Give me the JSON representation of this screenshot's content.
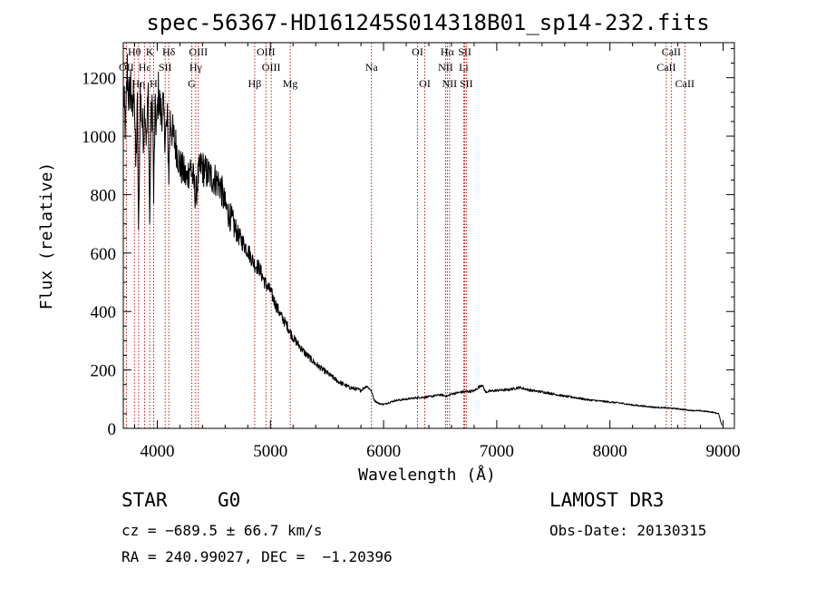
{
  "chart_data": {
    "type": "line",
    "title": "spec-56367-HD161245S014318B01_sp14-232.fits",
    "xlabel": "Wavelength (Å)",
    "ylabel": "Flux (relative)",
    "xlim": [
      3700,
      9100
    ],
    "ylim": [
      0,
      1320
    ],
    "x_ticks": [
      4000,
      5000,
      6000,
      7000,
      8000,
      9000
    ],
    "y_ticks": [
      0,
      200,
      400,
      600,
      800,
      1000,
      1200
    ],
    "series": [
      {
        "name": "flux",
        "x": [
          3700,
          3720,
          3735,
          3750,
          3765,
          3780,
          3795,
          3810,
          3825,
          3835,
          3850,
          3865,
          3880,
          3890,
          3905,
          3920,
          3933,
          3945,
          3960,
          3968,
          3980,
          3995,
          4010,
          4030,
          4050,
          4070,
          4090,
          4102,
          4115,
          4140,
          4170,
          4200,
          4230,
          4260,
          4290,
          4320,
          4340,
          4360,
          4390,
          4420,
          4450,
          4480,
          4520,
          4560,
          4600,
          4650,
          4700,
          4750,
          4800,
          4861,
          4900,
          4950,
          5000,
          5050,
          5100,
          5150,
          5200,
          5300,
          5400,
          5500,
          5600,
          5700,
          5800,
          5850,
          5890,
          5920,
          5960,
          6000,
          6100,
          6200,
          6300,
          6400,
          6500,
          6563,
          6600,
          6700,
          6800,
          6870,
          6900,
          7000,
          7100,
          7200,
          7300,
          7400,
          7500,
          7600,
          7700,
          7800,
          7900,
          8000,
          8100,
          8200,
          8300,
          8400,
          8500,
          8600,
          8700,
          8800,
          8900,
          8960,
          8990
        ],
        "y": [
          1150,
          1020,
          1230,
          1110,
          1190,
          1050,
          1200,
          900,
          1100,
          650,
          1150,
          1050,
          1000,
          1120,
          980,
          1150,
          700,
          1050,
          1100,
          780,
          1080,
          1030,
          1150,
          1080,
          1100,
          1000,
          1050,
          870,
          1060,
          1000,
          960,
          900,
          880,
          850,
          900,
          850,
          790,
          860,
          900,
          880,
          870,
          860,
          850,
          830,
          760,
          720,
          670,
          640,
          610,
          560,
          550,
          500,
          470,
          420,
          380,
          350,
          310,
          260,
          220,
          190,
          160,
          140,
          130,
          145,
          130,
          95,
          85,
          82,
          95,
          100,
          105,
          108,
          115,
          110,
          118,
          125,
          128,
          150,
          125,
          130,
          132,
          140,
          130,
          125,
          118,
          110,
          105,
          98,
          94,
          90,
          86,
          80,
          76,
          72,
          70,
          67,
          62,
          60,
          56,
          50,
          10
        ]
      }
    ],
    "emission_lines": [
      {
        "label": "Hθ",
        "wl": 3798,
        "row": 0
      },
      {
        "label": "K",
        "wl": 3934,
        "row": 0
      },
      {
        "label": "Hδ",
        "wl": 4102,
        "row": 0
      },
      {
        "label": "OIII",
        "wl": 4363,
        "row": 0
      },
      {
        "label": "OIII",
        "wl": 4960,
        "row": 0
      },
      {
        "label": "OI",
        "wl": 6300,
        "row": 0
      },
      {
        "label": "Hα",
        "wl": 6563,
        "row": 0
      },
      {
        "label": "SII",
        "wl": 6717,
        "row": 0
      },
      {
        "label": "CaII",
        "wl": 8542,
        "row": 0
      },
      {
        "label": "OII",
        "wl": 3727,
        "row": 1
      },
      {
        "label": "Hε",
        "wl": 3889,
        "row": 1
      },
      {
        "label": "SII",
        "wl": 4070,
        "row": 1
      },
      {
        "label": "Hγ",
        "wl": 4340,
        "row": 1
      },
      {
        "label": "OIII",
        "wl": 5007,
        "row": 1
      },
      {
        "label": "Na",
        "wl": 5893,
        "row": 1
      },
      {
        "label": "NII",
        "wl": 6548,
        "row": 1
      },
      {
        "label": "Li",
        "wl": 6708,
        "row": 1
      },
      {
        "label": "CaII",
        "wl": 8498,
        "row": 1
      },
      {
        "label": "Hη",
        "wl": 3835,
        "row": 2
      },
      {
        "label": "H",
        "wl": 3968,
        "row": 2
      },
      {
        "label": "G",
        "wl": 4305,
        "row": 2
      },
      {
        "label": "Hβ",
        "wl": 4861,
        "row": 2
      },
      {
        "label": "Mg",
        "wl": 5175,
        "row": 2
      },
      {
        "label": "OI",
        "wl": 6364,
        "row": 2
      },
      {
        "label": "NII",
        "wl": 6583,
        "row": 2
      },
      {
        "label": "SII",
        "wl": 6731,
        "row": 2
      },
      {
        "label": "CaII",
        "wl": 8662,
        "row": 2
      }
    ]
  },
  "info": {
    "class": "STAR",
    "subclass": "G0",
    "survey": "LAMOST DR3",
    "cz": "cz = −689.5 ± 66.7 km/s",
    "obs_date": "Obs-Date: 20130315",
    "coords": "RA = 240.99027, DEC =  −1.20396"
  }
}
